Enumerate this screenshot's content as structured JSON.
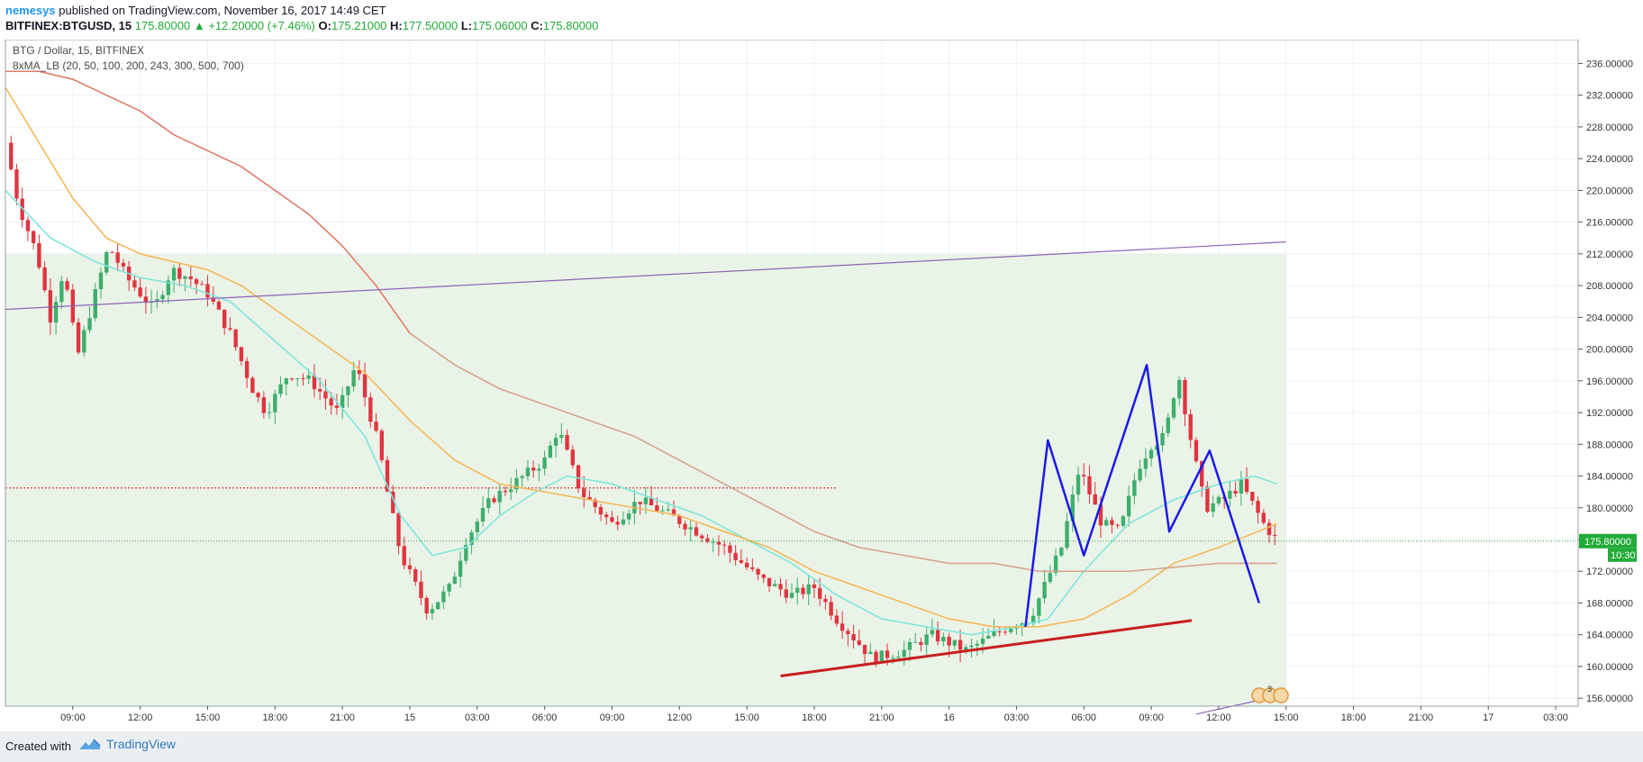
{
  "header": {
    "author": "nemesys",
    "published": "published on TradingView.com, November 16, 2017 14:49 CET",
    "symbol": "BITFINEX:BTGUSD, 15",
    "price": "175.80000",
    "change": "+12.20000 (+7.46%)",
    "o_label": "O:",
    "o_value": "175.21000",
    "h_label": "H:",
    "h_value": "177.50000",
    "l_label": "L:",
    "l_value": "175.06000",
    "c_label": "C:",
    "c_value": "175.80000"
  },
  "footer": {
    "created": "Created with",
    "brand": "TradingView",
    "brand_icon": "tradingview-logo-icon"
  },
  "colors": {
    "bull": "#3dae6c",
    "bear": "#e03440",
    "ma_cyan": "#7fe6dc",
    "ma_orange": "#f5b85a",
    "ma_salmon": "#e07a66",
    "ma_tan": "#d5a48d",
    "channel": "#8a63b5",
    "support": "#c81e1e",
    "zigzag": "#1a1ae6",
    "zone_fill": "#e6f1e3",
    "price_tag": "#22ab38"
  },
  "chart_data": {
    "type": "candlestick",
    "title": "BTG / Dollar, 15, BITFINEX",
    "indicator": "8xMA_LB (20, 50, 100, 200, 243, 300, 500, 700)",
    "y_axis": {
      "ylim": [
        155,
        239
      ],
      "ticks": [
        "156.00000",
        "160.00000",
        "164.00000",
        "168.00000",
        "172.00000",
        "176.00000",
        "180.00000",
        "184.00000",
        "188.00000",
        "192.00000",
        "196.00000",
        "200.00000",
        "204.00000",
        "208.00000",
        "212.00000",
        "216.00000",
        "220.00000",
        "224.00000",
        "228.00000",
        "232.00000",
        "236.00000"
      ]
    },
    "x_axis": {
      "unit": "hours since 14 Nov 06:00",
      "xlim": [
        0,
        70
      ],
      "ticks": [
        {
          "x": 3,
          "label": "09:00"
        },
        {
          "x": 6,
          "label": "12:00"
        },
        {
          "x": 9,
          "label": "15:00"
        },
        {
          "x": 12,
          "label": "18:00"
        },
        {
          "x": 15,
          "label": "21:00"
        },
        {
          "x": 18,
          "label": "15"
        },
        {
          "x": 21,
          "label": "03:00"
        },
        {
          "x": 24,
          "label": "06:00"
        },
        {
          "x": 27,
          "label": "09:00"
        },
        {
          "x": 30,
          "label": "12:00"
        },
        {
          "x": 33,
          "label": "15:00"
        },
        {
          "x": 36,
          "label": "18:00"
        },
        {
          "x": 39,
          "label": "21:00"
        },
        {
          "x": 42,
          "label": "16"
        },
        {
          "x": 45,
          "label": "03:00"
        },
        {
          "x": 48,
          "label": "06:00"
        },
        {
          "x": 51,
          "label": "09:00"
        },
        {
          "x": 54,
          "label": "12:00"
        },
        {
          "x": 57,
          "label": "15:00"
        },
        {
          "x": 60,
          "label": "18:00"
        },
        {
          "x": 63,
          "label": "21:00"
        },
        {
          "x": 66,
          "label": "17"
        },
        {
          "x": 69,
          "label": "03:00"
        }
      ]
    },
    "last_price": {
      "value": 175.8,
      "label": "175.80000",
      "countdown": "10:30"
    },
    "close_path": [
      [
        0,
        226
      ],
      [
        0.6,
        218
      ],
      [
        1.4,
        212
      ],
      [
        2,
        204
      ],
      [
        2.6,
        210
      ],
      [
        3.2,
        199
      ],
      [
        3.8,
        205
      ],
      [
        4.6,
        213
      ],
      [
        5.4,
        209
      ],
      [
        6,
        207
      ],
      [
        6.6,
        205
      ],
      [
        7.4,
        210
      ],
      [
        8.2,
        209
      ],
      [
        9,
        207
      ],
      [
        10,
        202
      ],
      [
        11,
        195
      ],
      [
        11.6,
        192
      ],
      [
        12.6,
        197
      ],
      [
        13.6,
        196
      ],
      [
        14.8,
        192
      ],
      [
        15.6,
        198
      ],
      [
        16.6,
        188
      ],
      [
        17,
        182
      ],
      [
        17.6,
        174
      ],
      [
        18.8,
        167
      ],
      [
        19.8,
        170
      ],
      [
        20.5,
        176
      ],
      [
        21.6,
        181
      ],
      [
        22.6,
        183
      ],
      [
        24,
        186
      ],
      [
        24.6,
        190
      ],
      [
        25.6,
        182
      ],
      [
        27,
        178
      ],
      [
        28.2,
        181
      ],
      [
        29.6,
        179
      ],
      [
        30.8,
        177
      ],
      [
        32,
        175
      ],
      [
        33.6,
        171
      ],
      [
        35,
        169
      ],
      [
        36,
        170
      ],
      [
        37,
        166
      ],
      [
        38.6,
        161
      ],
      [
        40,
        162
      ],
      [
        41.2,
        164
      ],
      [
        42.8,
        162
      ],
      [
        44.6,
        165
      ],
      [
        45.6,
        166
      ],
      [
        47,
        175
      ],
      [
        47.8,
        185
      ],
      [
        48.8,
        178
      ],
      [
        49.6,
        177
      ],
      [
        50.4,
        185
      ],
      [
        51,
        188
      ],
      [
        51.6,
        189
      ],
      [
        52.2,
        197
      ],
      [
        52.8,
        188
      ],
      [
        53.4,
        180
      ],
      [
        54.2,
        181
      ],
      [
        55,
        183
      ],
      [
        56,
        178
      ],
      [
        56.6,
        175.8
      ]
    ],
    "moving_averages": [
      {
        "name": "ma-cyan",
        "color": "#7fe6dc",
        "points": [
          [
            0,
            220
          ],
          [
            2,
            214
          ],
          [
            4,
            211
          ],
          [
            6,
            209
          ],
          [
            8,
            208
          ],
          [
            10,
            206
          ],
          [
            12,
            201
          ],
          [
            14,
            196
          ],
          [
            16,
            189
          ],
          [
            17.6,
            179
          ],
          [
            19,
            174
          ],
          [
            20.5,
            175
          ],
          [
            22,
            179
          ],
          [
            23.6,
            182
          ],
          [
            25,
            184
          ],
          [
            27,
            183
          ],
          [
            29,
            181
          ],
          [
            31,
            179
          ],
          [
            33,
            176
          ],
          [
            35,
            173
          ],
          [
            37,
            169
          ],
          [
            39,
            166
          ],
          [
            41,
            165
          ],
          [
            43,
            164
          ],
          [
            45,
            165
          ],
          [
            46.4,
            166
          ],
          [
            48,
            172
          ],
          [
            50,
            178
          ],
          [
            52,
            181
          ],
          [
            54,
            183
          ],
          [
            55.6,
            184
          ],
          [
            56.6,
            183
          ]
        ]
      },
      {
        "name": "ma-orange",
        "color": "#f5b85a",
        "points": [
          [
            0,
            233
          ],
          [
            1.5,
            226
          ],
          [
            3,
            219
          ],
          [
            4.5,
            214
          ],
          [
            6,
            212
          ],
          [
            7.5,
            211
          ],
          [
            9,
            210
          ],
          [
            10.5,
            208
          ],
          [
            12,
            205
          ],
          [
            14,
            201
          ],
          [
            16,
            197
          ],
          [
            18,
            191
          ],
          [
            20,
            186
          ],
          [
            22,
            183
          ],
          [
            24,
            182
          ],
          [
            26,
            181
          ],
          [
            28,
            180
          ],
          [
            30,
            179
          ],
          [
            32,
            177
          ],
          [
            34,
            175
          ],
          [
            36,
            172
          ],
          [
            38,
            170
          ],
          [
            40,
            168
          ],
          [
            42,
            166
          ],
          [
            44,
            165
          ],
          [
            46,
            165
          ],
          [
            48,
            166
          ],
          [
            50,
            169
          ],
          [
            52,
            173
          ],
          [
            54,
            175
          ],
          [
            56.6,
            178
          ]
        ]
      },
      {
        "name": "ma-salmon",
        "color": "#e07a66",
        "points": [
          [
            0,
            235
          ],
          [
            1.5,
            235
          ],
          [
            3,
            234
          ],
          [
            4.5,
            232
          ],
          [
            6,
            230
          ],
          [
            7.5,
            227
          ],
          [
            9,
            225
          ],
          [
            10.5,
            223
          ],
          [
            12,
            220
          ],
          [
            13.5,
            217
          ],
          [
            15,
            213
          ],
          [
            16.5,
            208
          ],
          [
            18,
            202
          ]
        ]
      },
      {
        "name": "ma-tan",
        "color": "#d5a48d",
        "points": [
          [
            18,
            202
          ],
          [
            20,
            198
          ],
          [
            22,
            195
          ],
          [
            24,
            193
          ],
          [
            26,
            191
          ],
          [
            28,
            189
          ],
          [
            30,
            186
          ],
          [
            32,
            183
          ],
          [
            34,
            180
          ],
          [
            36,
            177
          ],
          [
            38,
            175
          ],
          [
            40,
            174
          ],
          [
            42,
            173
          ],
          [
            44,
            173
          ],
          [
            46,
            172
          ],
          [
            48,
            172
          ],
          [
            50,
            172
          ],
          [
            52,
            172.5
          ],
          [
            54,
            173
          ],
          [
            56.6,
            173
          ]
        ]
      }
    ],
    "drawings": {
      "channel_upper": [
        [
          0,
          205
        ],
        [
          57,
          213.5
        ]
      ],
      "channel_lower": [
        [
          53,
          154
        ],
        [
          57,
          156.5
        ]
      ],
      "zone": {
        "x": [
          0,
          57
        ],
        "y": [
          155,
          212
        ]
      },
      "resistance_dotted": {
        "x": [
          0,
          37
        ],
        "y": 182.5
      },
      "support_line": [
        [
          34.5,
          158.8
        ],
        [
          52.8,
          165.8
        ]
      ],
      "zigzag": [
        [
          45.4,
          165
        ],
        [
          46.4,
          188.5
        ],
        [
          48,
          174
        ],
        [
          50.8,
          198
        ],
        [
          51.8,
          177
        ],
        [
          53.6,
          187.2
        ],
        [
          55.8,
          168
        ]
      ]
    }
  }
}
